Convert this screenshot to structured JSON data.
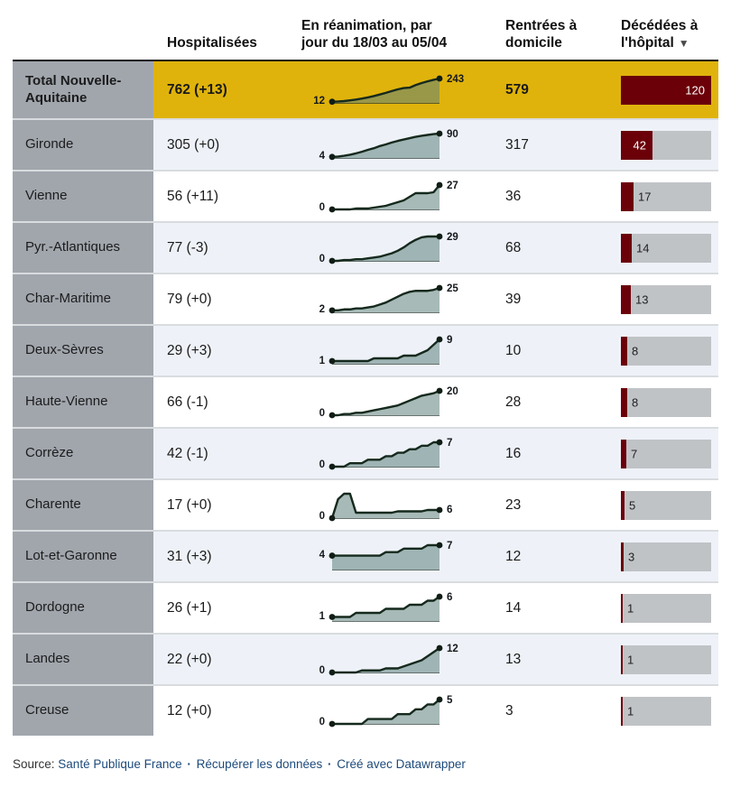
{
  "colors": {
    "highlight": "#e0b30c",
    "maroon": "#6b0009",
    "label_col": "#a1a6ad",
    "tint": "#eef2f8",
    "track": "#c0c3c6",
    "spark_line": "#15291d",
    "spark_fill": "rgba(95,130,124,0.55)",
    "link": "#1d4a7b"
  },
  "header": {
    "hospitalized": "Hospitalisées",
    "reanimation": "En réanimation, par\njour du 18/03 au 05/04",
    "home": "Rentrées à\ndomicile",
    "deaths": "Décédées à\nl'hôpital",
    "sort_icon": "▼"
  },
  "footer": {
    "prefix": "Source:",
    "link_source": "Santé Publique France",
    "link_data": "Récupérer les données",
    "link_tool": "Créé avec Datawrapper",
    "separator": "·"
  },
  "chart_data": {
    "type": "table",
    "title": "",
    "columns": [
      "",
      "Hospitalisées",
      "En réanimation, par jour du 18/03 au 05/04",
      "Rentrées à domicile",
      "Décédées à l'hôpital"
    ],
    "sparkline_date_range": [
      "18/03",
      "05/04"
    ],
    "deaths_bar_max": 120,
    "rows": [
      {
        "name": "Total Nouvelle-Aquitaine",
        "hospitalized": "762 (+13)",
        "home": 579,
        "deaths": 120,
        "highlight": true,
        "reanimation": {
          "start": 12,
          "end": 243,
          "values": [
            12,
            14,
            18,
            25,
            33,
            43,
            55,
            68,
            84,
            100,
            118,
            135,
            148,
            152,
            178,
            198,
            215,
            230,
            243
          ]
        }
      },
      {
        "name": "Gironde",
        "hospitalized": "305 (+0)",
        "home": 317,
        "deaths": 42,
        "highlight": false,
        "reanimation": {
          "start": 4,
          "end": 90,
          "values": [
            4,
            5,
            8,
            12,
            17,
            23,
            30,
            36,
            44,
            50,
            57,
            63,
            68,
            73,
            78,
            82,
            85,
            88,
            90
          ]
        }
      },
      {
        "name": "Vienne",
        "hospitalized": "56 (+11)",
        "home": 36,
        "deaths": 17,
        "highlight": false,
        "reanimation": {
          "start": 0,
          "end": 27,
          "values": [
            0,
            0,
            0,
            0,
            1,
            1,
            1,
            2,
            3,
            4,
            6,
            8,
            10,
            14,
            18,
            18,
            18,
            19,
            27
          ]
        }
      },
      {
        "name": "Pyr.-Atlantiques",
        "hospitalized": "77 (-3)",
        "home": 68,
        "deaths": 14,
        "highlight": false,
        "reanimation": {
          "start": 0,
          "end": 29,
          "values": [
            0,
            0,
            1,
            1,
            2,
            2,
            3,
            4,
            5,
            7,
            9,
            12,
            16,
            21,
            25,
            28,
            29,
            29,
            29
          ]
        }
      },
      {
        "name": "Char-Maritime",
        "hospitalized": "79 (+0)",
        "home": 39,
        "deaths": 13,
        "highlight": false,
        "reanimation": {
          "start": 2,
          "end": 25,
          "values": [
            2,
            2,
            3,
            3,
            4,
            4,
            5,
            6,
            8,
            10,
            13,
            16,
            19,
            21,
            22,
            22,
            22,
            23,
            25
          ]
        }
      },
      {
        "name": "Deux-Sèvres",
        "hospitalized": "29 (+3)",
        "home": 10,
        "deaths": 8,
        "highlight": false,
        "reanimation": {
          "start": 1,
          "end": 9,
          "values": [
            1,
            1,
            1,
            1,
            1,
            1,
            1,
            2,
            2,
            2,
            2,
            2,
            3,
            3,
            3,
            4,
            5,
            7,
            9
          ]
        }
      },
      {
        "name": "Haute-Vienne",
        "hospitalized": "66 (-1)",
        "home": 28,
        "deaths": 8,
        "highlight": false,
        "reanimation": {
          "start": 0,
          "end": 20,
          "values": [
            0,
            0,
            1,
            1,
            2,
            2,
            3,
            4,
            5,
            6,
            7,
            8,
            10,
            12,
            14,
            16,
            17,
            18,
            20
          ]
        }
      },
      {
        "name": "Corrèze",
        "hospitalized": "42 (-1)",
        "home": 16,
        "deaths": 7,
        "highlight": false,
        "reanimation": {
          "start": 0,
          "end": 7,
          "values": [
            0,
            0,
            0,
            1,
            1,
            1,
            2,
            2,
            2,
            3,
            3,
            4,
            4,
            5,
            5,
            6,
            6,
            7,
            7
          ]
        }
      },
      {
        "name": "Charente",
        "hospitalized": "17 (+0)",
        "home": 23,
        "deaths": 5,
        "highlight": false,
        "reanimation": {
          "start": 0,
          "end": 6,
          "values": [
            0,
            14,
            18,
            18,
            4,
            4,
            4,
            4,
            4,
            4,
            4,
            5,
            5,
            5,
            5,
            5,
            6,
            6,
            6
          ]
        }
      },
      {
        "name": "Lot-et-Garonne",
        "hospitalized": "31 (+3)",
        "home": 12,
        "deaths": 3,
        "highlight": false,
        "reanimation": {
          "start": 4,
          "end": 7,
          "values": [
            4,
            4,
            4,
            4,
            4,
            4,
            4,
            4,
            4,
            5,
            5,
            5,
            6,
            6,
            6,
            6,
            7,
            7,
            7
          ]
        }
      },
      {
        "name": "Dordogne",
        "hospitalized": "26 (+1)",
        "home": 14,
        "deaths": 1,
        "highlight": false,
        "reanimation": {
          "start": 1,
          "end": 6,
          "values": [
            1,
            1,
            1,
            1,
            2,
            2,
            2,
            2,
            2,
            3,
            3,
            3,
            3,
            4,
            4,
            4,
            5,
            5,
            6
          ]
        }
      },
      {
        "name": "Landes",
        "hospitalized": "22 (+0)",
        "home": 13,
        "deaths": 1,
        "highlight": false,
        "reanimation": {
          "start": 0,
          "end": 12,
          "values": [
            0,
            0,
            0,
            0,
            0,
            1,
            1,
            1,
            1,
            2,
            2,
            2,
            3,
            4,
            5,
            6,
            8,
            10,
            12
          ]
        }
      },
      {
        "name": "Creuse",
        "hospitalized": "12 (+0)",
        "home": 3,
        "deaths": 1,
        "highlight": false,
        "reanimation": {
          "start": 0,
          "end": 5,
          "values": [
            0,
            0,
            0,
            0,
            0,
            0,
            1,
            1,
            1,
            1,
            1,
            2,
            2,
            2,
            3,
            3,
            4,
            4,
            5
          ]
        }
      }
    ]
  }
}
